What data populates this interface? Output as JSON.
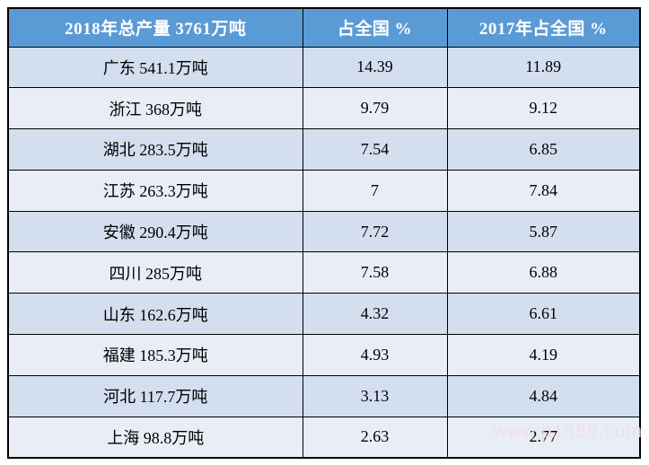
{
  "colors": {
    "header_bg": "#5B9BD5",
    "header_text": "#FFFFFF",
    "row_shaded_bg": "#D3DEEF",
    "row_light_bg": "#E9EEF6",
    "grid_border": "#000000",
    "watermark_text_color": "#F3DDE4"
  },
  "watermark": {
    "text": "www.p1689.com"
  },
  "table": {
    "columns": [
      "2018年总产量 3761万吨",
      "占全国 %",
      "2017年占全国 %"
    ],
    "rows": [
      {
        "region": "广东 541.1万吨",
        "share_2018": "14.39",
        "share_2017": "11.89"
      },
      {
        "region": "浙江 368万吨",
        "share_2018": "9.79",
        "share_2017": "9.12"
      },
      {
        "region": "湖北 283.5万吨",
        "share_2018": "7.54",
        "share_2017": "6.85"
      },
      {
        "region": "江苏 263.3万吨",
        "share_2018": "7",
        "share_2017": "7.84"
      },
      {
        "region": "安徽 290.4万吨",
        "share_2018": "7.72",
        "share_2017": "5.87"
      },
      {
        "region": "四川 285万吨",
        "share_2018": "7.58",
        "share_2017": "6.88"
      },
      {
        "region": "山东 162.6万吨",
        "share_2018": "4.32",
        "share_2017": "6.61"
      },
      {
        "region": "福建 185.3万吨",
        "share_2018": "4.93",
        "share_2017": "4.19"
      },
      {
        "region": "河北 117.7万吨",
        "share_2018": "3.13",
        "share_2017": "4.84"
      },
      {
        "region": "上海 98.8万吨",
        "share_2018": "2.63",
        "share_2017": "2.77"
      }
    ]
  },
  "chart_data": {
    "type": "table",
    "title": "2018年总产量 3761万吨",
    "columns": [
      "2018年总产量 3761万吨",
      "占全国 %",
      "2017年占全国 %"
    ],
    "units": {
      "production": "万吨",
      "share": "%"
    },
    "total_production_2018_wan_t": 3761,
    "series": [
      {
        "region": "广东",
        "production_wan_t": 541.1,
        "share_2018_pct": 14.39,
        "share_2017_pct": 11.89
      },
      {
        "region": "浙江",
        "production_wan_t": 368,
        "share_2018_pct": 9.79,
        "share_2017_pct": 9.12
      },
      {
        "region": "湖北",
        "production_wan_t": 283.5,
        "share_2018_pct": 7.54,
        "share_2017_pct": 6.85
      },
      {
        "region": "江苏",
        "production_wan_t": 263.3,
        "share_2018_pct": 7,
        "share_2017_pct": 7.84
      },
      {
        "region": "安徽",
        "production_wan_t": 290.4,
        "share_2018_pct": 7.72,
        "share_2017_pct": 5.87
      },
      {
        "region": "四川",
        "production_wan_t": 285,
        "share_2018_pct": 7.58,
        "share_2017_pct": 6.88
      },
      {
        "region": "山东",
        "production_wan_t": 162.6,
        "share_2018_pct": 4.32,
        "share_2017_pct": 6.61
      },
      {
        "region": "福建",
        "production_wan_t": 185.3,
        "share_2018_pct": 4.93,
        "share_2017_pct": 4.19
      },
      {
        "region": "河北",
        "production_wan_t": 117.7,
        "share_2018_pct": 3.13,
        "share_2017_pct": 4.84
      },
      {
        "region": "上海",
        "production_wan_t": 98.8,
        "share_2018_pct": 2.63,
        "share_2017_pct": 2.77
      }
    ]
  }
}
